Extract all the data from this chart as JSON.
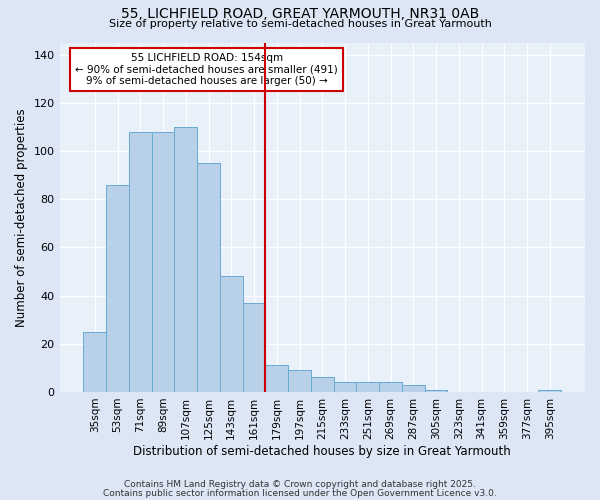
{
  "title": "55, LICHFIELD ROAD, GREAT YARMOUTH, NR31 0AB",
  "subtitle": "Size of property relative to semi-detached houses in Great Yarmouth",
  "xlabel": "Distribution of semi-detached houses by size in Great Yarmouth",
  "ylabel": "Number of semi-detached properties",
  "bar_labels": [
    "35sqm",
    "53sqm",
    "71sqm",
    "89sqm",
    "107sqm",
    "125sqm",
    "143sqm",
    "161sqm",
    "179sqm",
    "197sqm",
    "215sqm",
    "233sqm",
    "251sqm",
    "269sqm",
    "287sqm",
    "305sqm",
    "323sqm",
    "341sqm",
    "359sqm",
    "377sqm",
    "395sqm"
  ],
  "bar_values": [
    25,
    86,
    108,
    108,
    110,
    95,
    48,
    37,
    11,
    9,
    6,
    4,
    4,
    4,
    3,
    1,
    0,
    0,
    0,
    0,
    1
  ],
  "bar_color": "#b8d0e8",
  "bar_edge_color": "#6aaad4",
  "vline_x": 7.5,
  "vline_color": "#cc0000",
  "annotation_title": "55 LICHFIELD ROAD: 154sqm",
  "annotation_line1": "← 90% of semi-detached houses are smaller (491)",
  "annotation_line2": "9% of semi-detached houses are larger (50) →",
  "annotation_box_color": "#cc0000",
  "ylim": [
    0,
    145
  ],
  "yticks": [
    0,
    20,
    40,
    60,
    80,
    100,
    120,
    140
  ],
  "footer1": "Contains HM Land Registry data © Crown copyright and database right 2025.",
  "footer2": "Contains public sector information licensed under the Open Government Licence v3.0.",
  "bg_color": "#dce6f5",
  "plot_bg_color": "#e8f0fa"
}
